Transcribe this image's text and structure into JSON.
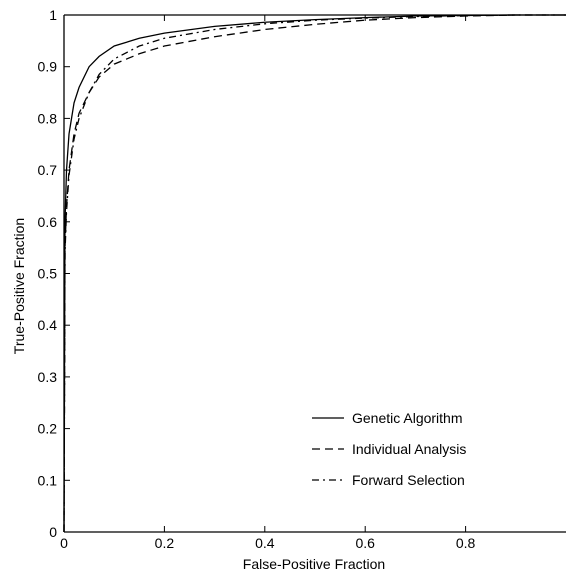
{
  "chart_data": {
    "type": "line",
    "title": "",
    "xlabel": "False-Positive Fraction",
    "ylabel": "True-Positive Fraction",
    "xlim": [
      0,
      1
    ],
    "ylim": [
      0,
      1
    ],
    "x_ticks": [
      "0",
      "0.2",
      "0.4",
      "0.6",
      "0.8"
    ],
    "y_ticks": [
      "0",
      "0.1",
      "0.2",
      "0.3",
      "0.4",
      "0.5",
      "0.6",
      "0.7",
      "0.8",
      "0.9",
      "1"
    ],
    "grid": false,
    "legend_position": "bottom-right",
    "series": [
      {
        "name": "Genetic Algorithm",
        "line_style": "solid",
        "x": [
          0,
          0.002,
          0.005,
          0.01,
          0.02,
          0.03,
          0.05,
          0.07,
          0.1,
          0.15,
          0.2,
          0.3,
          0.4,
          0.5,
          0.6,
          0.7,
          0.8,
          0.9,
          1.0
        ],
        "y": [
          0,
          0.6,
          0.7,
          0.77,
          0.83,
          0.86,
          0.9,
          0.92,
          0.94,
          0.955,
          0.965,
          0.978,
          0.986,
          0.991,
          0.995,
          0.998,
          0.999,
          1.0,
          1.0
        ]
      },
      {
        "name": "Individual Analysis",
        "line_style": "dashed",
        "x": [
          0,
          0.002,
          0.005,
          0.01,
          0.02,
          0.03,
          0.05,
          0.07,
          0.1,
          0.15,
          0.2,
          0.3,
          0.4,
          0.5,
          0.6,
          0.7,
          0.8,
          0.9,
          1.0
        ],
        "y": [
          0,
          0.55,
          0.63,
          0.7,
          0.77,
          0.81,
          0.85,
          0.88,
          0.905,
          0.925,
          0.94,
          0.958,
          0.972,
          0.982,
          0.99,
          0.995,
          0.998,
          1.0,
          1.0
        ]
      },
      {
        "name": "Forward Selection",
        "line_style": "dashdot",
        "x": [
          0,
          0.002,
          0.005,
          0.01,
          0.02,
          0.03,
          0.05,
          0.07,
          0.1,
          0.15,
          0.2,
          0.3,
          0.4,
          0.5,
          0.6,
          0.7,
          0.8,
          0.9,
          1.0
        ],
        "y": [
          0,
          0.54,
          0.62,
          0.69,
          0.76,
          0.8,
          0.85,
          0.885,
          0.915,
          0.94,
          0.955,
          0.972,
          0.983,
          0.99,
          0.994,
          0.997,
          0.999,
          1.0,
          1.0
        ]
      }
    ]
  }
}
